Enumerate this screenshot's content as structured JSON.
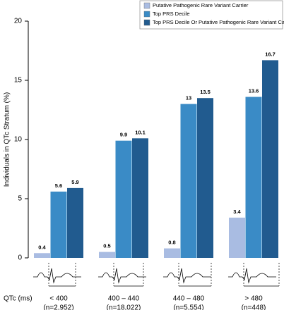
{
  "chart_data": {
    "type": "bar",
    "y_label": "Individuals in QTc Stratum (%)",
    "x_label": "QTc (ms)",
    "categories": [
      "< 400",
      "400 – 440",
      "440 – 480",
      "> 480"
    ],
    "category_notes": [
      "(n=2,952)",
      "(n=18,022)",
      "(n=5,554)",
      "(n=448)"
    ],
    "series": [
      {
        "name": "Putative Pathogenic Rare Variant Carrier",
        "color": "#a9bce2",
        "values": [
          0.4,
          0.5,
          0.8,
          3.4
        ]
      },
      {
        "name": "Top PRS Decile",
        "color": "#3a8bc6",
        "values": [
          5.6,
          9.9,
          13,
          13.6
        ]
      },
      {
        "name": "Top PRS Decile Or Putative Pathogenic Rare Variant Carrier",
        "color": "#215b8f",
        "values": [
          5.9,
          10.1,
          13.5,
          16.7
        ]
      }
    ],
    "ylim": [
      0,
      20
    ],
    "yticks": [
      0,
      5,
      10,
      15,
      20
    ],
    "legend": "top-right"
  }
}
